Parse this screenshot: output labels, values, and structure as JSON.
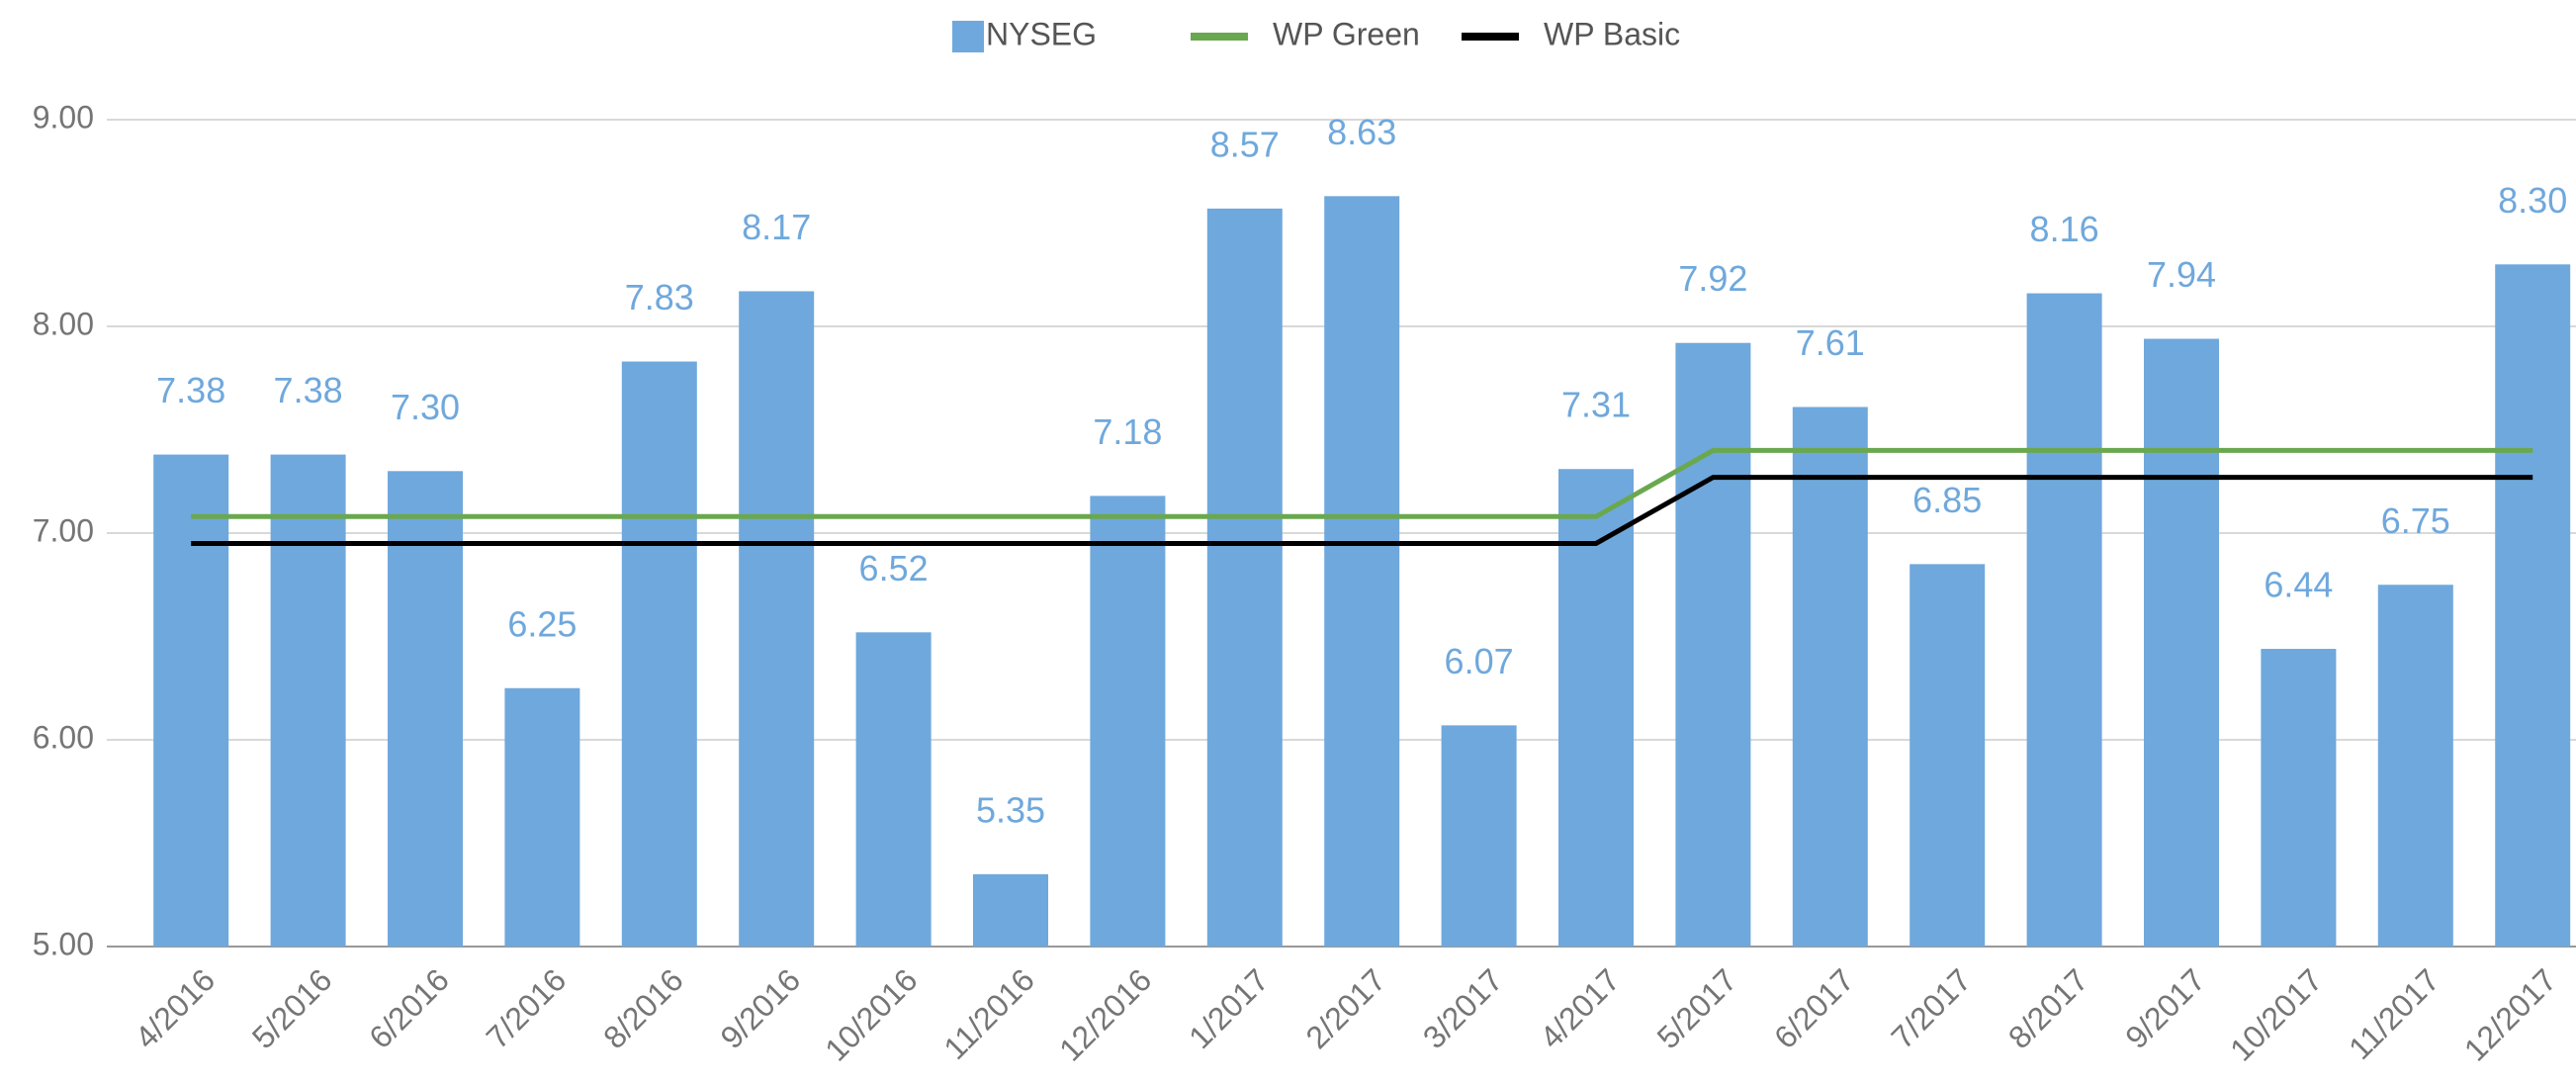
{
  "chart_data": {
    "type": "bar",
    "categories": [
      "4/2016",
      "5/2016",
      "6/2016",
      "7/2016",
      "8/2016",
      "9/2016",
      "10/2016",
      "11/2016",
      "12/2016",
      "1/2017",
      "2/2017",
      "3/2017",
      "4/2017",
      "5/2017",
      "6/2017",
      "7/2017",
      "8/2017",
      "9/2017",
      "10/2017",
      "11/2017",
      "12/2017"
    ],
    "series": [
      {
        "name": "NYSEG",
        "type": "bar",
        "color": "#6fa8dc",
        "values": [
          7.38,
          7.38,
          7.3,
          6.25,
          7.83,
          8.17,
          6.52,
          5.35,
          7.18,
          8.57,
          8.63,
          6.07,
          7.31,
          7.92,
          7.61,
          6.85,
          8.16,
          7.94,
          6.44,
          6.75,
          8.3
        ],
        "value_labels": [
          "7.38",
          "7.38",
          "7.30",
          "6.25",
          "7.83",
          "8.17",
          "6.52",
          "5.35",
          "7.18",
          "8.57",
          "8.63",
          "6.07",
          "7.31",
          "7.92",
          "7.61",
          "6.85",
          "8.16",
          "7.94",
          "6.44",
          "6.75",
          "8.30"
        ]
      },
      {
        "name": "WP Green",
        "type": "line",
        "color": "#6aa84f",
        "values": [
          7.08,
          7.08,
          7.08,
          7.08,
          7.08,
          7.08,
          7.08,
          7.08,
          7.08,
          7.08,
          7.08,
          7.08,
          7.08,
          7.4,
          7.4,
          7.4,
          7.4,
          7.4,
          7.4,
          7.4,
          7.4
        ]
      },
      {
        "name": "WP Basic",
        "type": "line",
        "color": "#000000",
        "values": [
          6.95,
          6.95,
          6.95,
          6.95,
          6.95,
          6.95,
          6.95,
          6.95,
          6.95,
          6.95,
          6.95,
          6.95,
          6.95,
          7.27,
          7.27,
          7.27,
          7.27,
          7.27,
          7.27,
          7.27,
          7.27
        ]
      }
    ],
    "ylim": [
      5,
      9
    ],
    "yticks": [
      {
        "value": 5,
        "label": "5.00"
      },
      {
        "value": 6,
        "label": "6.00"
      },
      {
        "value": 7,
        "label": "7.00"
      },
      {
        "value": 8,
        "label": "8.00"
      },
      {
        "value": 9,
        "label": "9.00"
      }
    ],
    "grid": true,
    "legend": "top"
  }
}
